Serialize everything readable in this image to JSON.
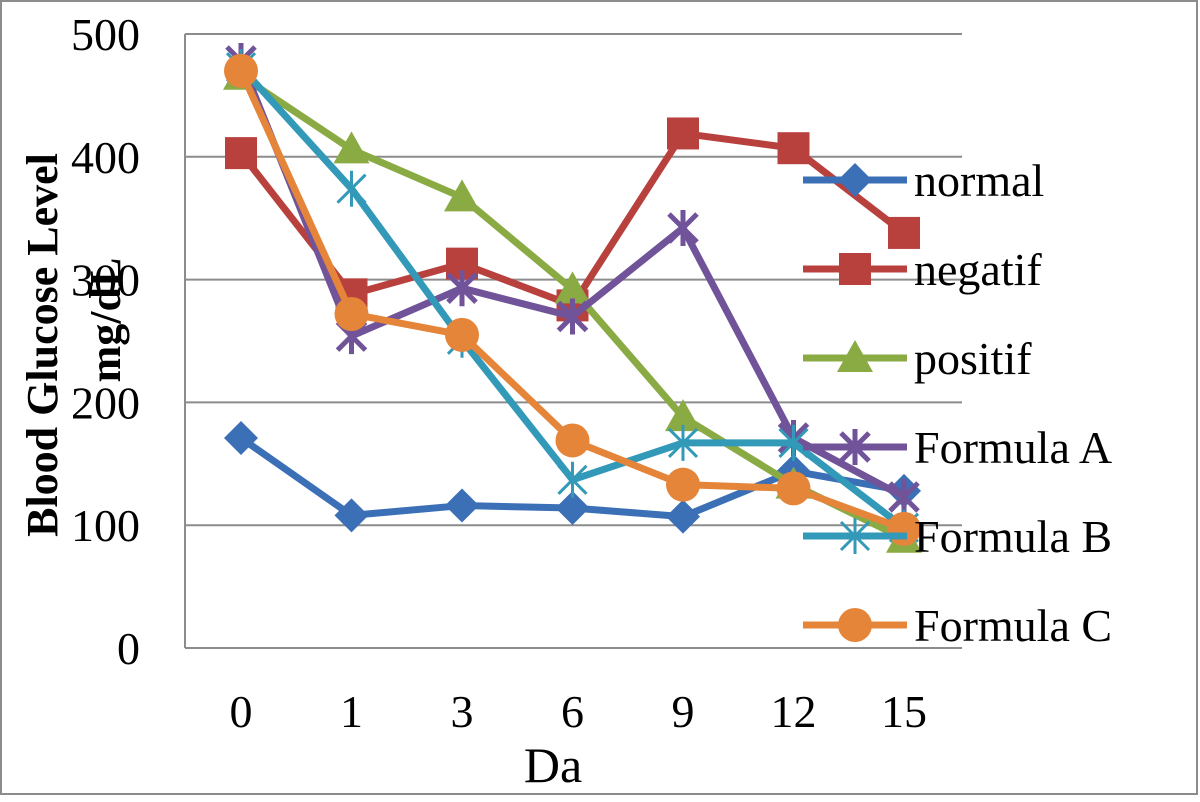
{
  "chart_data": {
    "type": "line",
    "title": "",
    "xlabel": "Da",
    "ylabel": "Blood Glucose Level",
    "ylabel_unit": "mg/dL",
    "categories": [
      "0",
      "1",
      "3",
      "6",
      "9",
      "12",
      "15"
    ],
    "y_ticks": [
      "0",
      "100",
      "200",
      "300",
      "400",
      "500"
    ],
    "ylim": [
      0,
      500
    ],
    "grid": "horizontal",
    "legend_position": "right",
    "series": [
      {
        "name": "normal",
        "color": "#3b6fb6",
        "marker": "diamond",
        "values": [
          171,
          108,
          116,
          114,
          107,
          144,
          128
        ]
      },
      {
        "name": "negatif",
        "color": "#b8413e",
        "marker": "square",
        "values": [
          403,
          288,
          313,
          279,
          419,
          407,
          338
        ]
      },
      {
        "name": "positif",
        "color": "#8aaa44",
        "marker": "triangle",
        "values": [
          466,
          406,
          367,
          292,
          188,
          133,
          89
        ]
      },
      {
        "name": "Formula A",
        "color": "#71539a",
        "marker": "star",
        "values": [
          478,
          254,
          293,
          270,
          342,
          171,
          123
        ]
      },
      {
        "name": "Formula B",
        "color": "#3299b8",
        "marker": "asterisk",
        "values": [
          473,
          374,
          251,
          137,
          167,
          167,
          98
        ]
      },
      {
        "name": "Formula C",
        "color": "#e5853a",
        "marker": "circle",
        "values": [
          470,
          272,
          255,
          169,
          133,
          130,
          97
        ]
      }
    ]
  }
}
